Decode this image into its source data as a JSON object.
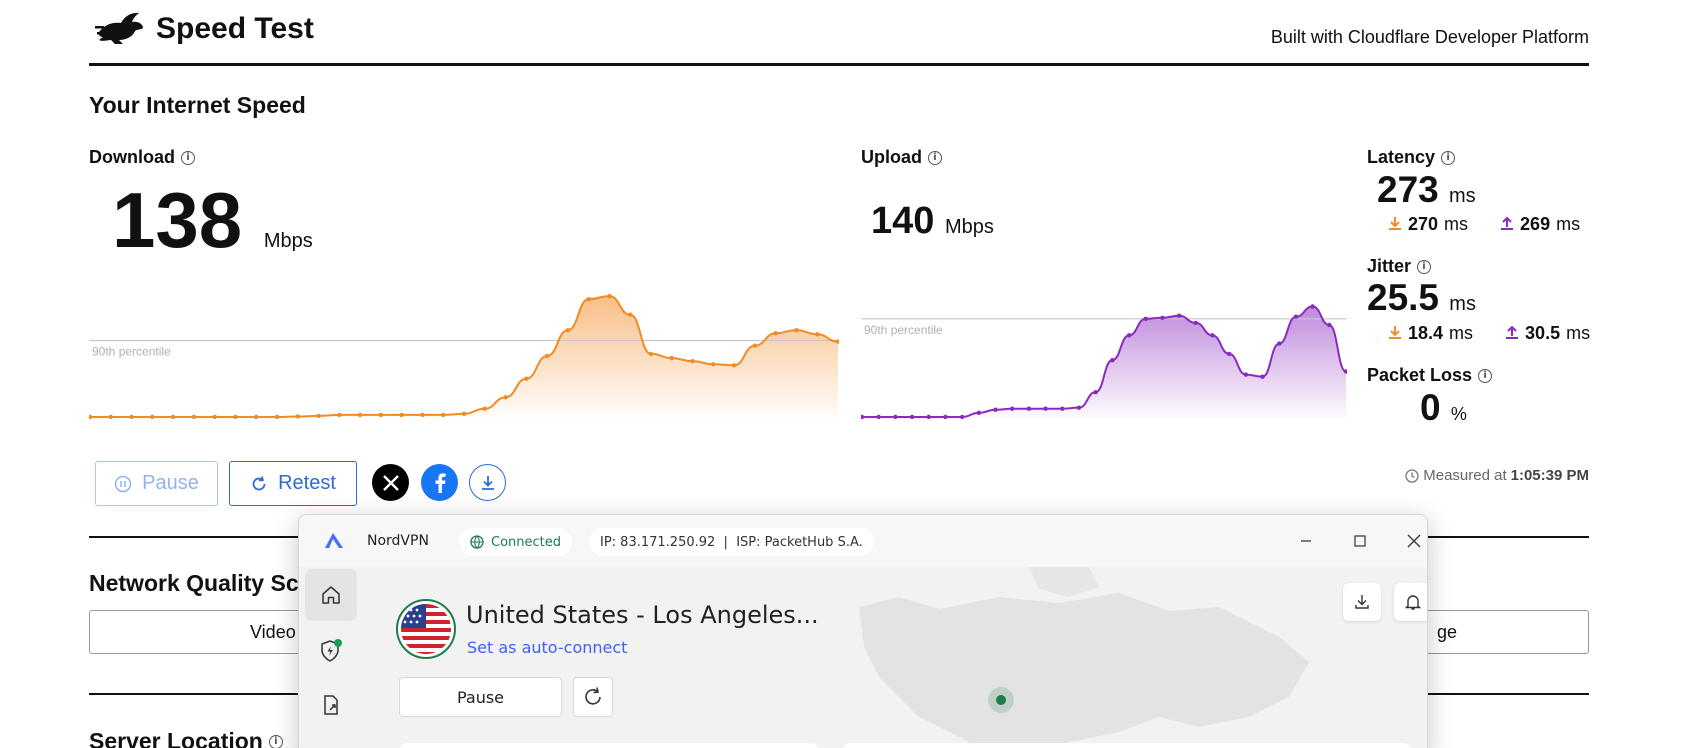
{
  "header": {
    "brand": "Speed Test",
    "built_with": "Built with Cloudflare Developer Platform"
  },
  "speed": {
    "title": "Your Internet Speed",
    "download": {
      "label": "Download",
      "value": "138",
      "unit": "Mbps",
      "percentile_label": "90th percentile"
    },
    "upload": {
      "label": "Upload",
      "value": "140",
      "unit": "Mbps",
      "percentile_label": "90th percentile"
    },
    "latency": {
      "label": "Latency",
      "value": "273",
      "unit": "ms",
      "down": "270",
      "up": "269",
      "sub_unit": "ms"
    },
    "jitter": {
      "label": "Jitter",
      "value": "25.5",
      "unit": "ms",
      "down": "18.4",
      "up": "30.5",
      "sub_unit": "ms"
    },
    "packet_loss": {
      "label": "Packet Loss",
      "value": "0",
      "unit": "%"
    }
  },
  "actions": {
    "pause": "Pause",
    "retest": "Retest",
    "measured_prefix": "Measured at",
    "measured_time": "1:05:39 PM"
  },
  "sections": {
    "network_quality": "Network Quality Sc",
    "nq_left": "Video",
    "nq_right": "ge",
    "server_location": "Server Location"
  },
  "vpn": {
    "app_name": "NordVPN",
    "status": "Connected",
    "ip_info": "IP: 83.171.250.92  |  ISP: PacketHub S.A.",
    "location": "United States - Los Angeles...",
    "auto_connect": "Set as auto-connect",
    "pause": "Pause"
  },
  "colors": {
    "download": "#f28a25",
    "upload": "#8a2ac0",
    "accent": "#2d6bd6",
    "vpn_accent": "#3e5fff",
    "vpn_connected": "#1a7d4a"
  },
  "chart_data": [
    {
      "type": "area",
      "series": [
        {
          "name": "Download",
          "values": [
            1,
            1,
            1,
            1,
            1,
            1,
            1,
            1,
            1,
            1,
            1.5,
            2,
            3,
            3,
            3,
            3,
            3,
            3,
            4,
            9,
            20,
            38,
            60,
            85,
            115,
            118,
            100,
            62,
            58,
            55,
            52,
            51,
            70,
            82,
            85,
            81,
            74
          ]
        }
      ],
      "percentile": 75
    },
    {
      "type": "area",
      "series": [
        {
          "name": "Upload",
          "values": [
            1,
            1,
            1,
            1,
            1,
            1,
            1,
            5,
            8,
            9,
            9,
            9,
            9,
            10,
            25,
            56,
            80,
            96,
            97,
            99,
            92,
            80,
            62,
            42,
            40,
            72,
            98,
            108,
            90,
            45
          ]
        }
      ],
      "percentile": 96
    }
  ]
}
